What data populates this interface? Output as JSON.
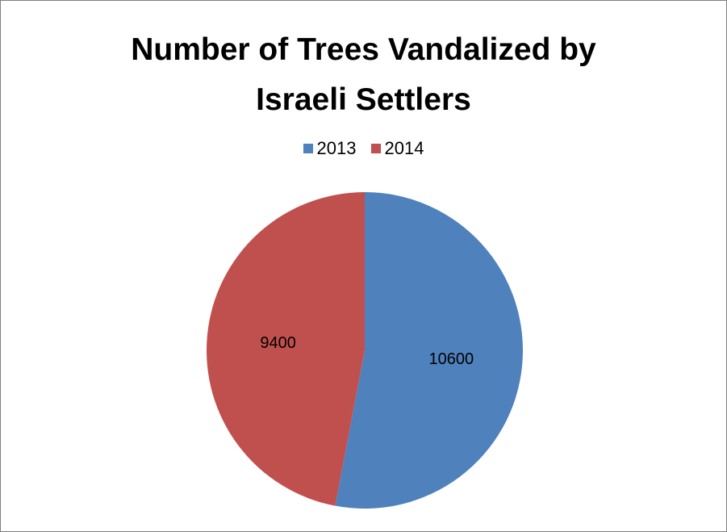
{
  "chart_data": {
    "type": "pie",
    "title_lines": [
      "Number of Trees Vandalized by",
      "Israeli Settlers"
    ],
    "categories": [
      "2013",
      "2014"
    ],
    "values": [
      10600,
      9400
    ],
    "colors": [
      "#4f81bd",
      "#c0504d"
    ],
    "legend_position": "top",
    "data_labels": [
      "10600",
      "9400"
    ]
  }
}
